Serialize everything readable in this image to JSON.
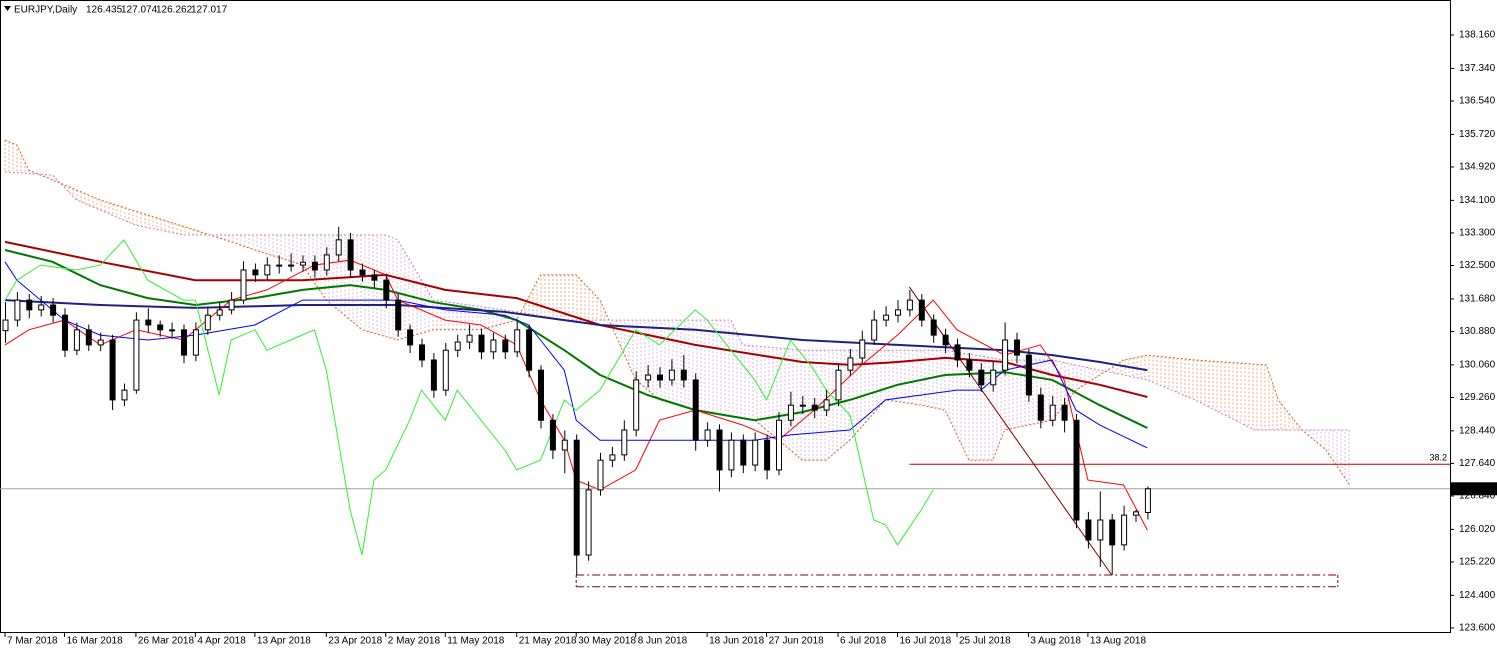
{
  "chart_data": {
    "type": "candlestick",
    "title": "EURJPY,Daily",
    "ylim": [
      123.5,
      139.02
    ],
    "yticks": [
      {
        "value": 138.16,
        "label": "138.160"
      },
      {
        "value": 137.34,
        "label": "137.340"
      },
      {
        "value": 136.54,
        "label": "136.540"
      },
      {
        "value": 135.72,
        "label": "135.720"
      },
      {
        "value": 134.92,
        "label": "134.920"
      },
      {
        "value": 134.1,
        "label": "134.100"
      },
      {
        "value": 133.3,
        "label": "133.300"
      },
      {
        "value": 132.5,
        "label": "132.500"
      },
      {
        "value": 131.68,
        "label": "131.680"
      },
      {
        "value": 130.88,
        "label": "130.880"
      },
      {
        "value": 130.06,
        "label": "130.060"
      },
      {
        "value": 129.26,
        "label": "129.260"
      },
      {
        "value": 128.44,
        "label": "128.440"
      },
      {
        "value": 127.64,
        "label": "127.640"
      },
      {
        "value": 126.84,
        "label": "126.840"
      },
      {
        "value": 126.02,
        "label": "126.020"
      },
      {
        "value": 125.22,
        "label": "125.220"
      },
      {
        "value": 124.4,
        "label": "124.400"
      },
      {
        "value": 123.6,
        "label": "123.600"
      }
    ],
    "xticks": [
      {
        "value": 0,
        "label": "7 Mar 2018"
      },
      {
        "value": 5,
        "label": "16 Mar 2018"
      },
      {
        "value": 11,
        "label": "26 Mar 2018"
      },
      {
        "value": 16,
        "label": "4 Apr 2018"
      },
      {
        "value": 21,
        "label": "13 Apr 2018"
      },
      {
        "value": 27,
        "label": "23 Apr 2018"
      },
      {
        "value": 32,
        "label": "2 May 2018"
      },
      {
        "value": 37,
        "label": "11 May 2018"
      },
      {
        "value": 43,
        "label": "21 May 2018"
      },
      {
        "value": 48,
        "label": "30 May 2018"
      },
      {
        "value": 53,
        "label": "8 Jun 2018"
      },
      {
        "value": 59,
        "label": "18 Jun 2018"
      },
      {
        "value": 64,
        "label": "27 Jun 2018"
      },
      {
        "value": 70,
        "label": "6 Jul 2018"
      },
      {
        "value": 75,
        "label": "16 Jul 2018"
      },
      {
        "value": 80,
        "label": "25 Jul 2018"
      },
      {
        "value": 86,
        "label": "3 Aug 2018"
      },
      {
        "value": 91,
        "label": "13 Aug 2018"
      }
    ],
    "up_color": "#ffffff",
    "down_color": "#000000",
    "wick_color": "#000000",
    "ohlc": [
      [
        130.9,
        131.6,
        130.6,
        131.16
      ],
      [
        131.16,
        131.85,
        131.0,
        131.65
      ],
      [
        131.65,
        131.8,
        131.2,
        131.41
      ],
      [
        131.41,
        131.75,
        131.25,
        131.53
      ],
      [
        131.53,
        131.7,
        131.1,
        131.28
      ],
      [
        131.28,
        131.45,
        130.25,
        130.42
      ],
      [
        130.42,
        131.1,
        130.3,
        130.92
      ],
      [
        130.92,
        131.05,
        130.4,
        130.55
      ],
      [
        130.55,
        130.85,
        130.4,
        130.67
      ],
      [
        130.67,
        130.8,
        128.95,
        129.2
      ],
      [
        129.2,
        129.6,
        129.05,
        129.44
      ],
      [
        129.44,
        131.35,
        129.35,
        131.16
      ],
      [
        131.16,
        131.45,
        130.85,
        131.04
      ],
      [
        131.04,
        131.15,
        130.75,
        130.92
      ],
      [
        130.92,
        131.1,
        130.7,
        130.92
      ],
      [
        130.92,
        131.05,
        130.1,
        130.3
      ],
      [
        130.3,
        131.1,
        130.15,
        130.92
      ],
      [
        130.92,
        131.45,
        130.8,
        131.28
      ],
      [
        131.28,
        131.6,
        131.15,
        131.41
      ],
      [
        131.41,
        131.85,
        131.3,
        131.65
      ],
      [
        131.65,
        132.6,
        131.55,
        132.39
      ],
      [
        132.39,
        132.55,
        132.1,
        132.27
      ],
      [
        132.27,
        132.7,
        132.15,
        132.51
      ],
      [
        132.51,
        132.75,
        132.3,
        132.51
      ],
      [
        132.51,
        132.8,
        132.35,
        132.51
      ],
      [
        132.51,
        132.75,
        132.35,
        132.58
      ],
      [
        132.58,
        132.75,
        132.2,
        132.39
      ],
      [
        132.39,
        132.95,
        132.25,
        132.76
      ],
      [
        132.76,
        133.45,
        132.6,
        133.13
      ],
      [
        133.13,
        133.3,
        132.2,
        132.39
      ],
      [
        132.39,
        132.55,
        132.1,
        132.27
      ],
      [
        132.27,
        132.4,
        131.95,
        132.14
      ],
      [
        132.14,
        132.3,
        131.45,
        131.65
      ],
      [
        131.65,
        131.8,
        130.75,
        130.92
      ],
      [
        130.92,
        131.05,
        130.35,
        130.55
      ],
      [
        130.55,
        130.7,
        130.0,
        130.18
      ],
      [
        130.18,
        130.35,
        129.25,
        129.44
      ],
      [
        129.44,
        130.6,
        129.3,
        130.42
      ],
      [
        130.42,
        130.8,
        130.25,
        130.62
      ],
      [
        130.62,
        131.05,
        130.45,
        130.79
      ],
      [
        130.79,
        130.95,
        130.2,
        130.38
      ],
      [
        130.38,
        130.85,
        130.2,
        130.67
      ],
      [
        130.67,
        130.8,
        130.2,
        130.38
      ],
      [
        130.38,
        131.15,
        130.25,
        130.92
      ],
      [
        130.92,
        131.05,
        129.75,
        129.93
      ],
      [
        129.93,
        130.05,
        128.5,
        128.7
      ],
      [
        128.7,
        128.85,
        127.75,
        127.97
      ],
      [
        127.97,
        128.45,
        127.4,
        128.21
      ],
      [
        128.21,
        128.35,
        124.9,
        125.39
      ],
      [
        125.39,
        127.2,
        125.25,
        126.99
      ],
      [
        126.99,
        127.9,
        126.85,
        127.72
      ],
      [
        127.72,
        128.05,
        127.55,
        127.85
      ],
      [
        127.85,
        128.7,
        127.7,
        128.46
      ],
      [
        128.46,
        129.9,
        128.3,
        129.69
      ],
      [
        129.69,
        130.05,
        129.5,
        129.81
      ],
      [
        129.81,
        130.0,
        129.5,
        129.69
      ],
      [
        129.69,
        130.2,
        129.55,
        129.93
      ],
      [
        129.93,
        130.3,
        129.5,
        129.69
      ],
      [
        129.69,
        129.85,
        127.95,
        128.21
      ],
      [
        128.21,
        128.65,
        128.05,
        128.46
      ],
      [
        128.46,
        128.6,
        126.95,
        127.48
      ],
      [
        127.48,
        128.4,
        127.3,
        128.21
      ],
      [
        128.21,
        128.35,
        127.4,
        127.6
      ],
      [
        127.6,
        128.4,
        127.45,
        128.21
      ],
      [
        128.21,
        128.35,
        127.25,
        127.48
      ],
      [
        127.48,
        128.9,
        127.35,
        128.7
      ],
      [
        128.7,
        129.4,
        128.55,
        129.07
      ],
      [
        129.07,
        129.3,
        128.85,
        129.07
      ],
      [
        129.07,
        129.25,
        128.75,
        128.95
      ],
      [
        128.95,
        129.45,
        128.8,
        129.2
      ],
      [
        129.2,
        130.1,
        129.05,
        129.93
      ],
      [
        129.93,
        130.45,
        129.8,
        130.23
      ],
      [
        130.23,
        130.9,
        130.1,
        130.67
      ],
      [
        130.67,
        131.4,
        130.55,
        131.16
      ],
      [
        131.16,
        131.5,
        131.0,
        131.28
      ],
      [
        131.28,
        131.65,
        131.1,
        131.41
      ],
      [
        131.41,
        131.9,
        131.25,
        131.65
      ],
      [
        131.65,
        131.8,
        131.0,
        131.16
      ],
      [
        131.16,
        131.3,
        130.6,
        130.79
      ],
      [
        130.79,
        130.95,
        130.35,
        130.55
      ],
      [
        130.55,
        130.7,
        130.0,
        130.18
      ],
      [
        130.18,
        130.35,
        129.75,
        129.93
      ],
      [
        129.93,
        130.1,
        129.4,
        129.57
      ],
      [
        129.57,
        130.15,
        129.4,
        129.93
      ],
      [
        129.93,
        131.1,
        129.8,
        130.67
      ],
      [
        130.67,
        130.85,
        130.1,
        130.3
      ],
      [
        130.3,
        130.45,
        129.15,
        129.32
      ],
      [
        129.32,
        129.5,
        128.5,
        128.7
      ],
      [
        128.7,
        129.3,
        128.55,
        129.07
      ],
      [
        129.07,
        129.25,
        128.4,
        128.7
      ],
      [
        128.7,
        128.85,
        126.05,
        126.25
      ],
      [
        126.25,
        126.45,
        125.55,
        125.76
      ],
      [
        125.76,
        126.95,
        125.1,
        126.25
      ],
      [
        126.25,
        126.4,
        124.9,
        125.64
      ],
      [
        125.64,
        126.6,
        125.5,
        126.37
      ],
      [
        126.37,
        126.5,
        126.2,
        126.45
      ],
      [
        126.435,
        127.074,
        126.262,
        127.017
      ]
    ],
    "cloud": [
      {
        "color": "#d2691e",
        "x": [
          0,
          1,
          2,
          5,
          8,
          12,
          16,
          21,
          25,
          27,
          30,
          33,
          36,
          40,
          43,
          45,
          48,
          50,
          53,
          55,
          58,
          63,
          67,
          69,
          71,
          74,
          77,
          79,
          81,
          83,
          84,
          88,
          90,
          94,
          96,
          100,
          106,
          107,
          109,
          111,
          113
        ],
        "values": [
          135.58,
          135.46,
          134.84,
          134.48,
          134.11,
          133.74,
          133.37,
          132.88,
          132.51,
          131.65,
          130.92,
          130.67,
          130.92,
          130.92,
          131.16,
          132.27,
          132.27,
          131.65,
          129.69,
          129.2,
          128.95,
          128.7,
          127.72,
          127.72,
          128.21,
          129.2,
          129.07,
          128.95,
          127.72,
          127.72,
          128.46,
          128.7,
          129.44,
          130.18,
          130.3,
          130.18,
          130.06,
          129.2,
          128.46,
          127.97,
          127.11
        ]
      },
      {
        "color": "#c080c0",
        "x": [
          0,
          4,
          6,
          11,
          15,
          21,
          27,
          32,
          33,
          36,
          42,
          47,
          50,
          58,
          61,
          62,
          67,
          72,
          75,
          79,
          84,
          88,
          92,
          96,
          100,
          105,
          109,
          113
        ],
        "values": [
          134.8,
          134.72,
          134.11,
          133.49,
          133.25,
          133.25,
          133.25,
          133.25,
          133.13,
          131.65,
          131.41,
          131.16,
          131.16,
          131.16,
          131.16,
          130.55,
          130.42,
          130.42,
          130.42,
          130.42,
          130.18,
          130.18,
          129.93,
          129.69,
          129.2,
          128.46,
          128.46,
          128.46
        ]
      }
    ],
    "series": [
      {
        "color": "#a50000",
        "line_width": 2,
        "x": [
          0,
          8,
          16,
          25,
          32,
          37,
          43,
          50,
          58,
          67,
          71,
          75,
          79,
          84,
          88,
          92,
          96
        ],
        "values": [
          133.08,
          132.59,
          132.14,
          132.14,
          132.27,
          131.9,
          131.7,
          131.04,
          130.55,
          130.13,
          130.06,
          130.13,
          130.23,
          130.13,
          129.81,
          129.57,
          129.27
        ]
      },
      {
        "color": "#007800",
        "line_width": 2,
        "x": [
          0,
          4,
          8,
          12,
          16,
          21,
          25,
          29,
          32,
          36,
          40,
          43,
          47,
          50,
          54,
          58,
          63,
          67,
          71,
          75,
          79,
          84,
          88,
          92,
          96
        ],
        "values": [
          132.88,
          132.59,
          132.02,
          131.7,
          131.53,
          131.7,
          131.9,
          132.02,
          131.9,
          131.6,
          131.41,
          131.16,
          130.42,
          129.81,
          129.32,
          128.95,
          128.7,
          128.9,
          129.2,
          129.57,
          129.81,
          129.88,
          129.69,
          129.07,
          128.51
        ]
      },
      {
        "color": "#202080",
        "line_width": 2,
        "x": [
          0,
          8,
          16,
          25,
          33,
          42,
          47,
          50,
          58,
          67,
          75,
          84,
          88,
          92,
          96
        ],
        "values": [
          131.65,
          131.53,
          131.46,
          131.53,
          131.53,
          131.36,
          131.16,
          131.04,
          130.92,
          130.67,
          130.55,
          130.42,
          130.3,
          130.13,
          129.93
        ]
      },
      {
        "color": "#ff0000",
        "line_width": 1,
        "x": [
          0,
          2,
          5,
          8,
          11,
          15,
          19,
          22,
          26,
          29,
          32,
          33,
          37,
          40,
          43,
          45,
          47,
          48,
          50,
          53,
          55,
          58,
          62,
          65,
          68,
          72,
          75,
          78,
          80,
          84,
          87,
          89,
          91,
          94,
          96
        ],
        "values": [
          130.55,
          130.92,
          131.16,
          130.55,
          130.92,
          130.67,
          131.65,
          131.9,
          132.51,
          132.63,
          132.27,
          131.65,
          131.16,
          131.04,
          130.55,
          129.2,
          128.21,
          127.23,
          126.99,
          127.48,
          128.7,
          128.95,
          128.58,
          128.21,
          128.95,
          130.06,
          130.79,
          131.65,
          130.92,
          130.3,
          130.55,
          129.69,
          127.23,
          127.11,
          126.0
        ]
      },
      {
        "color": "#0000ff",
        "line_width": 1,
        "x": [
          0,
          1,
          5,
          8,
          12,
          16,
          21,
          25,
          29,
          33,
          37,
          42,
          44,
          47,
          48,
          50,
          55,
          58,
          63,
          66,
          71,
          74,
          77,
          80,
          82,
          84,
          88,
          90,
          92,
          96
        ],
        "values": [
          132.59,
          132.14,
          131.16,
          130.79,
          130.67,
          130.79,
          131.04,
          131.65,
          131.65,
          131.65,
          131.41,
          131.28,
          131.04,
          129.93,
          128.7,
          128.21,
          128.21,
          128.21,
          128.21,
          128.34,
          128.46,
          129.2,
          129.32,
          129.44,
          129.44,
          129.93,
          130.18,
          128.95,
          128.58,
          128.02
        ]
      },
      {
        "color": "#33ee33",
        "line_width": 1,
        "x": [
          0,
          1,
          3,
          6,
          8,
          10,
          12,
          15,
          16,
          18,
          19,
          21,
          22,
          24,
          26,
          27,
          28,
          29,
          30,
          31,
          32,
          34,
          35,
          37,
          38,
          40,
          42,
          43,
          45,
          47,
          48,
          50,
          53,
          55,
          58,
          59,
          61,
          63,
          64,
          66,
          68,
          69,
          71,
          73,
          74,
          75,
          77,
          78
        ],
        "values": [
          131.65,
          132.14,
          132.51,
          132.39,
          132.51,
          133.13,
          132.14,
          131.65,
          131.65,
          129.32,
          130.67,
          130.92,
          130.42,
          130.67,
          130.92,
          129.93,
          128.21,
          126.5,
          125.39,
          127.23,
          127.48,
          128.7,
          129.44,
          128.7,
          129.44,
          128.7,
          127.97,
          127.48,
          127.72,
          129.2,
          128.95,
          129.44,
          130.92,
          130.55,
          131.41,
          131.16,
          130.42,
          129.69,
          129.2,
          130.67,
          129.93,
          129.44,
          128.83,
          126.25,
          126.13,
          125.64,
          126.5,
          126.99
        ]
      }
    ],
    "fib_level": {
      "label": "38.2",
      "value": 127.62,
      "x_start": 76,
      "color": "#c00000"
    },
    "trendline": {
      "x": [
        76,
        93
      ],
      "values": [
        131.97,
        124.9
      ],
      "color": "#800000"
    },
    "support_band": {
      "x": [
        48,
        112
      ],
      "values": [
        124.9,
        124.61
      ],
      "color": "#800000"
    },
    "price_line_color": "#a0a0a0"
  }
}
